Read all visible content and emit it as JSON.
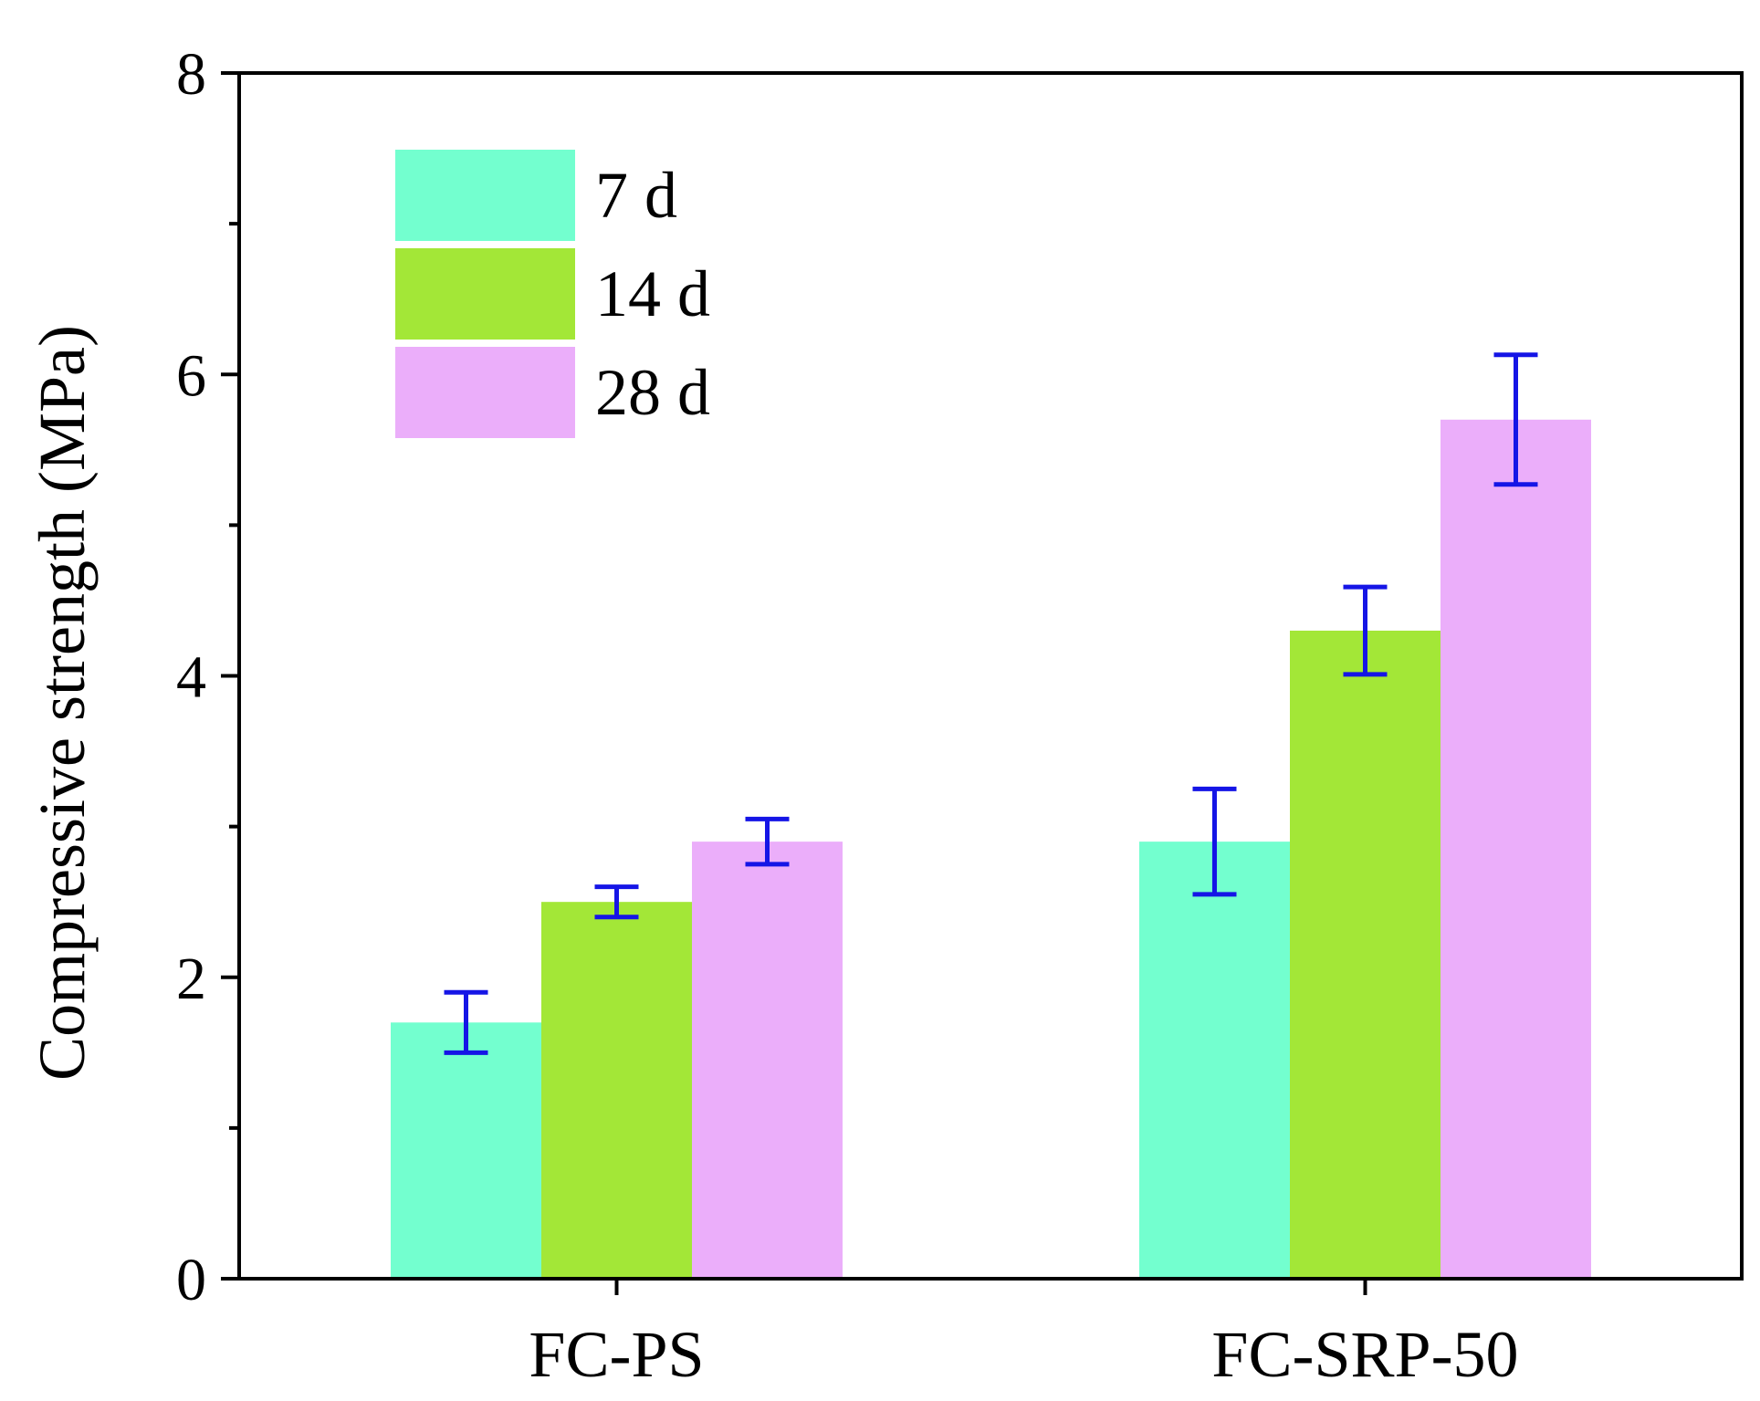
{
  "chart_data": {
    "type": "bar",
    "title": "",
    "xlabel": "",
    "ylabel": "Compressive strength (MPa)",
    "ylim": [
      0,
      8
    ],
    "yticks": [
      0,
      2,
      4,
      6,
      8
    ],
    "yticks_minor": [
      1,
      3,
      5,
      7
    ],
    "grid": false,
    "legend_position": "top-left",
    "categories": [
      "FC-PS",
      "FC-SRP-50"
    ],
    "series": [
      {
        "name": "7 d",
        "color": "#73FFCF",
        "values": [
          1.7,
          2.9
        ],
        "errors": [
          0.2,
          0.35
        ]
      },
      {
        "name": "14 d",
        "color": "#A3E737",
        "values": [
          2.5,
          4.3
        ],
        "errors": [
          0.1,
          0.29
        ]
      },
      {
        "name": "28 d",
        "color": "#EBAEFA",
        "values": [
          2.9,
          5.7
        ],
        "errors": [
          0.15,
          0.43
        ]
      }
    ],
    "error_bar_color": "#1515E6",
    "axis_color": "#000000"
  }
}
